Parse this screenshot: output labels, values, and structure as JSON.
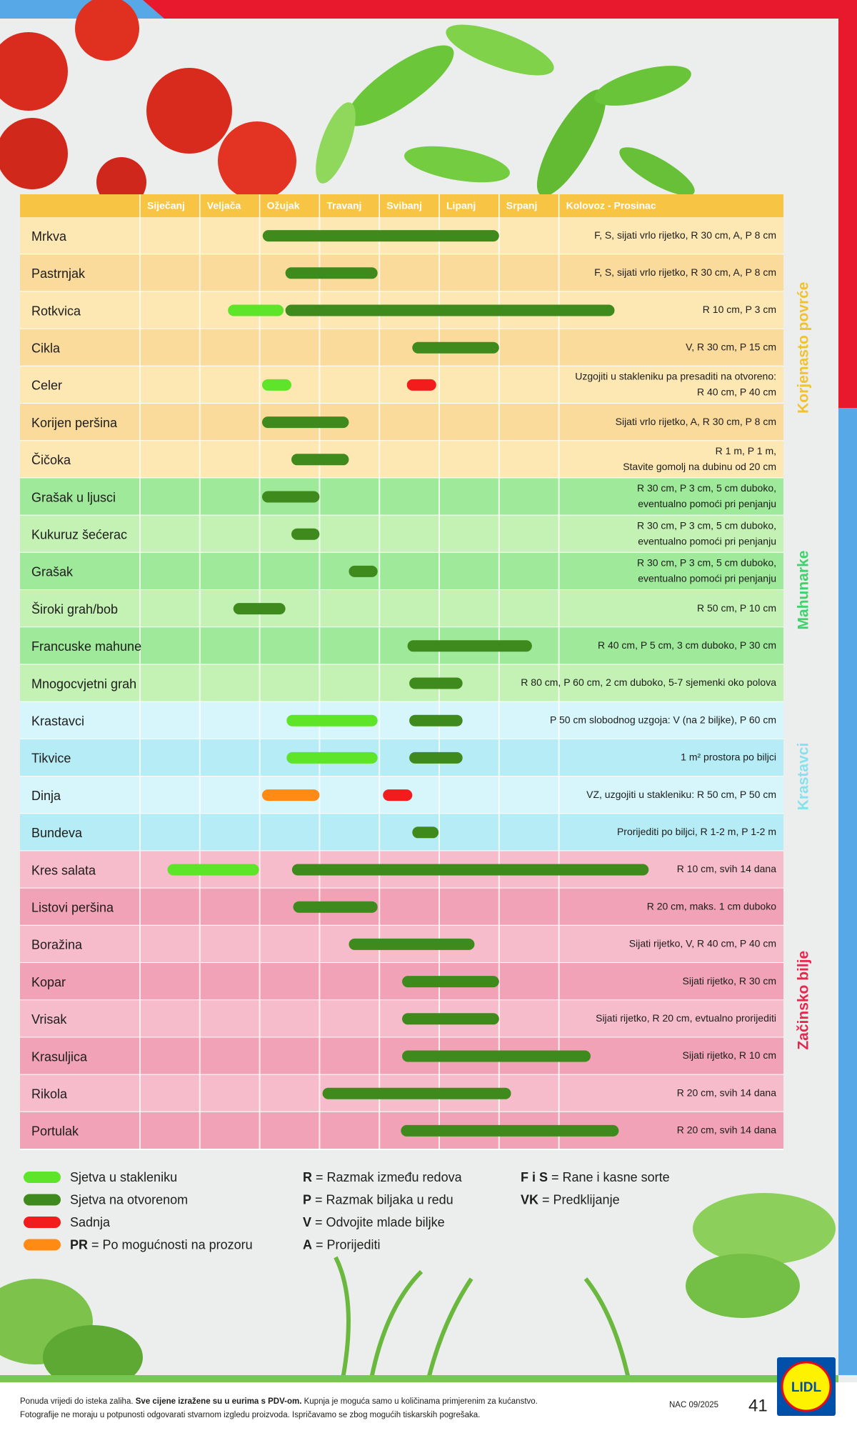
{
  "header": {
    "months": [
      "Siječanj",
      "Veljača",
      "Ožujak",
      "Travanj",
      "Svibanj",
      "Lipanj",
      "Srpanj",
      "Kolovoz  -  Prosinac"
    ]
  },
  "groups": [
    {
      "label": "Korjenasto povrće",
      "color": "#f2c12e",
      "shades": [
        "#fde8b4",
        "#fbdb9c"
      ],
      "rows": [
        {
          "name": "Mrkva",
          "note": [
            "F, S, sijati vrlo rijetko, R 30 cm,  A, P 8 cm"
          ],
          "bars": [
            {
              "from": 3.05,
              "to": 7.0,
              "color": "#3f8a1c"
            }
          ]
        },
        {
          "name": "Pastrnjak",
          "note": [
            "F, S, sijati vrlo rijetko, R 30 cm,  A, P 8 cm"
          ],
          "bars": [
            {
              "from": 3.43,
              "to": 4.97,
              "color": "#3f8a1c"
            }
          ]
        },
        {
          "name": "Rotkvica",
          "note": [
            "R 10 cm, P 3 cm"
          ],
          "bars": [
            {
              "from": 2.47,
              "to": 3.4,
              "color": "#5ee52a"
            },
            {
              "from": 3.43,
              "to": 8.93,
              "color": "#3f8a1c"
            }
          ]
        },
        {
          "name": "Cikla",
          "note": [
            "V, R 30 cm, P 15 cm"
          ],
          "bars": [
            {
              "from": 5.55,
              "to": 7.0,
              "color": "#3f8a1c"
            }
          ]
        },
        {
          "name": "Celer",
          "note": [
            "Uzgojiti u stakleniku pa presaditi na otvoreno:",
            "R 40 cm, P 40 cm"
          ],
          "bars": [
            {
              "from": 3.04,
              "to": 3.53,
              "color": "#5ee52a"
            },
            {
              "from": 5.46,
              "to": 5.95,
              "color": "#f21c1c"
            }
          ]
        },
        {
          "name": "Korijen peršina",
          "note": [
            "Sijati vrlo rijetko, A, R 30 cm, P 8 cm"
          ],
          "bars": [
            {
              "from": 3.04,
              "to": 4.49,
              "color": "#3f8a1c"
            }
          ]
        },
        {
          "name": "Čičoka",
          "note": [
            "R 1 m, P 1 m,",
            "Stavite gomolj na dubinu od 20 cm"
          ],
          "bars": [
            {
              "from": 3.53,
              "to": 4.49,
              "color": "#3f8a1c"
            }
          ]
        }
      ]
    },
    {
      "label": "Mahunarke",
      "color": "#3fd36b",
      "shades": [
        "#9ee99a",
        "#c4f2b5"
      ],
      "rows": [
        {
          "name": "Grašak u ljusci",
          "note": [
            "R 30 cm, P 3 cm, 5 cm duboko,",
            "eventualno pomoći pri penjanju"
          ],
          "bars": [
            {
              "from": 3.04,
              "to": 4.0,
              "color": "#3f8a1c"
            }
          ]
        },
        {
          "name": "Kukuruz šećerac",
          "note": [
            "R 30 cm, P 3 cm, 5 cm duboko,",
            "eventualno pomoći pri penjanju"
          ],
          "bars": [
            {
              "from": 3.53,
              "to": 4.0,
              "color": "#3f8a1c"
            }
          ]
        },
        {
          "name": "Grašak",
          "note": [
            "R 30 cm, P 3 cm, 5 cm duboko,",
            "eventualno pomoći pri penjanju"
          ],
          "bars": [
            {
              "from": 4.49,
              "to": 4.97,
              "color": "#3f8a1c"
            }
          ]
        },
        {
          "name": "Široki grah/bob",
          "note": [
            "R 50 cm, P 10 cm"
          ],
          "bars": [
            {
              "from": 2.56,
              "to": 3.43,
              "color": "#3f8a1c"
            }
          ]
        },
        {
          "name": "Francuske mahune",
          "note": [
            "R 40 cm, P 5 cm, 3 cm duboko, P 30 cm"
          ],
          "bars": [
            {
              "from": 5.47,
              "to": 7.55,
              "color": "#3f8a1c"
            }
          ]
        },
        {
          "name": "Mnogocvjetni grah",
          "note": [
            "R 80 cm, P 60 cm, 2 cm duboko, 5-7 sjemenki oko polova"
          ],
          "bars": [
            {
              "from": 5.5,
              "to": 6.39,
              "color": "#3f8a1c"
            }
          ]
        }
      ]
    },
    {
      "label": "Krastavci",
      "color": "#86e1ef",
      "shades": [
        "#d6f6fb",
        "#b6ecf5"
      ],
      "rows": [
        {
          "name": "Krastavci",
          "note": [
            "P 50 cm slobodnog uzgoja: V (na 2 biljke), P 60 cm"
          ],
          "bars": [
            {
              "from": 3.45,
              "to": 4.97,
              "color": "#5ee52a"
            },
            {
              "from": 5.5,
              "to": 6.39,
              "color": "#3f8a1c"
            }
          ]
        },
        {
          "name": "Tikvice",
          "note": [
            "1 m² prostora po biljci"
          ],
          "bars": [
            {
              "from": 3.45,
              "to": 4.97,
              "color": "#5ee52a"
            },
            {
              "from": 5.5,
              "to": 6.39,
              "color": "#3f8a1c"
            }
          ]
        },
        {
          "name": "Dinja",
          "note": [
            "VZ, uzgojiti u stakleniku: R 50 cm, P 50 cm"
          ],
          "bars": [
            {
              "from": 3.04,
              "to": 4.0,
              "color": "#ff8a14"
            },
            {
              "from": 5.06,
              "to": 5.55,
              "color": "#f21c1c"
            }
          ]
        },
        {
          "name": "Bundeva",
          "note": [
            "Prorijediti po biljci, R 1-2 m, P 1-2 m"
          ],
          "bars": [
            {
              "from": 5.55,
              "to": 5.99,
              "color": "#3f8a1c"
            }
          ]
        }
      ]
    },
    {
      "label": "Začinsko bilje",
      "color": "#e8264e",
      "shades": [
        "#f7bccb",
        "#f1a2b6"
      ],
      "rows": [
        {
          "name": "Kres salata",
          "note": [
            "R 10 cm, svih 14 dana"
          ],
          "bars": [
            {
              "from": 1.46,
              "to": 2.99,
              "color": "#5ee52a"
            },
            {
              "from": 3.54,
              "to": 9.5,
              "color": "#3f8a1c"
            }
          ]
        },
        {
          "name": "Listovi peršina",
          "note": [
            "R 20 cm, maks. 1 cm duboko"
          ],
          "bars": [
            {
              "from": 3.56,
              "to": 4.97,
              "color": "#3f8a1c"
            }
          ]
        },
        {
          "name": "Boražina",
          "note": [
            "Sijati rijetko, V, R 40 cm, P 40 cm"
          ],
          "bars": [
            {
              "from": 4.49,
              "to": 6.59,
              "color": "#3f8a1c"
            }
          ]
        },
        {
          "name": "Kopar",
          "note": [
            "Sijati rijetko, R 30 cm"
          ],
          "bars": [
            {
              "from": 5.38,
              "to": 7.0,
              "color": "#3f8a1c"
            }
          ]
        },
        {
          "name": "Vrisak",
          "note": [
            "Sijati rijetko, R 20 cm, evtualno prorijediti"
          ],
          "bars": [
            {
              "from": 5.38,
              "to": 7.0,
              "color": "#3f8a1c"
            }
          ]
        },
        {
          "name": "Krasuljica",
          "note": [
            "Sijati rijetko, R 10 cm"
          ],
          "bars": [
            {
              "from": 5.38,
              "to": 8.53,
              "color": "#3f8a1c"
            }
          ]
        },
        {
          "name": "Rikola",
          "note": [
            "R 20 cm, svih 14 dana"
          ],
          "bars": [
            {
              "from": 4.05,
              "to": 7.2,
              "color": "#3f8a1c"
            }
          ]
        },
        {
          "name": "Portulak",
          "note": [
            "R 20 cm, svih 14 dana"
          ],
          "bars": [
            {
              "from": 5.36,
              "to": 9.0,
              "color": "#3f8a1c"
            }
          ]
        }
      ]
    }
  ],
  "legend": {
    "colors": [
      {
        "color": "#5ee52a",
        "text": "Sjetva u stakleniku"
      },
      {
        "color": "#3f8a1c",
        "text": "Sjetva na otvorenom"
      },
      {
        "color": "#f21c1c",
        "text": "Sadnja"
      },
      {
        "color": "#ff8a14",
        "key": "PR",
        "text": " = Po mogućnosti na prozoru"
      }
    ],
    "abbreviations": [
      {
        "key": "R",
        "text": " = Razmak između redova"
      },
      {
        "key": "P",
        "text": " = Razmak biljaka u redu"
      },
      {
        "key": "V",
        "text": " = Odvojite mlade biljke"
      },
      {
        "key": "A",
        "text": " = Prorijediti"
      },
      {
        "key": "F i S",
        "text": " = Rane i kasne sorte"
      },
      {
        "key": "VK",
        "text": " = Predklijanje"
      }
    ]
  },
  "footer": {
    "line1": [
      "Ponuda vrijedi do isteka zaliha. ",
      "Sve cijene izražene su u eurima s PDV-om.",
      " Kupnja je moguća samo u količinama primjerenim za kućanstvo."
    ],
    "line2": "Fotografije ne moraju u potpunosti odgovarati stvarnom izgledu proizvoda. Ispričavamo se zbog mogućih tiskarskih pogrešaka.",
    "code": "NAC 09/2025",
    "page": "41",
    "logo": "LIDL"
  }
}
